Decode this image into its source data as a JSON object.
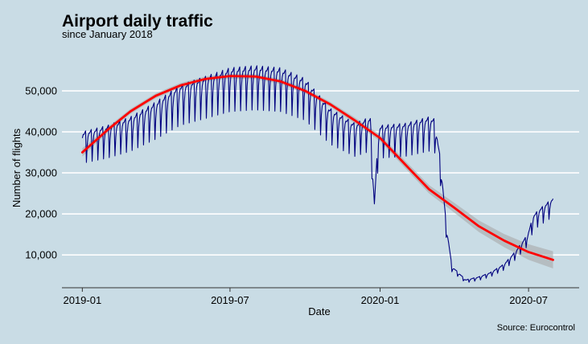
{
  "chart_data": {
    "type": "line",
    "title": "Airport daily traffic",
    "subtitle": "since January 2018",
    "xlabel": "Date",
    "ylabel": "Number of flights",
    "caption": "Source: Eurocontrol",
    "xlim": [
      "2018-12-07",
      "2020-09-01"
    ],
    "ylim": [
      2000,
      60000
    ],
    "x_ticks": [
      {
        "date": "2019-01-01",
        "label": "2019-01"
      },
      {
        "date": "2019-07-01",
        "label": "2019-07"
      },
      {
        "date": "2020-01-01",
        "label": "2020-01"
      },
      {
        "date": "2020-07-01",
        "label": "2020-07"
      }
    ],
    "y_ticks": [
      {
        "value": 10000,
        "label": "10,000"
      },
      {
        "value": 20000,
        "label": "20,000"
      },
      {
        "value": 30000,
        "label": "30,000"
      },
      {
        "value": 40000,
        "label": "40,000"
      },
      {
        "value": 50000,
        "label": "50,000"
      }
    ],
    "grid": "horizontal",
    "colors": {
      "background": "#c9dce5",
      "grid": "#ffffff",
      "daily": "#00007f",
      "trend": "#ff0000",
      "band": "#a9a9a9"
    },
    "daily_pattern": {
      "period_days": 7,
      "weekday_factors": [
        1.0,
        1.02,
        1.02,
        1.03,
        1.04,
        0.84,
        0.95
      ]
    },
    "daily_envelope": [
      {
        "date": "2019-01-01",
        "value": 38500
      },
      {
        "date": "2019-02-01",
        "value": 40000
      },
      {
        "date": "2019-03-01",
        "value": 42000
      },
      {
        "date": "2019-04-01",
        "value": 45500
      },
      {
        "date": "2019-05-01",
        "value": 49500
      },
      {
        "date": "2019-06-01",
        "value": 51500
      },
      {
        "date": "2019-07-01",
        "value": 53500
      },
      {
        "date": "2019-08-01",
        "value": 54000
      },
      {
        "date": "2019-09-01",
        "value": 53500
      },
      {
        "date": "2019-10-01",
        "value": 51000
      },
      {
        "date": "2019-11-01",
        "value": 44000
      },
      {
        "date": "2019-12-01",
        "value": 40500
      },
      {
        "date": "2019-12-20",
        "value": 42000
      },
      {
        "date": "2019-12-25",
        "value": 22000
      },
      {
        "date": "2019-12-30",
        "value": 39000
      },
      {
        "date": "2020-01-01",
        "value": 40000
      },
      {
        "date": "2020-02-01",
        "value": 40500
      },
      {
        "date": "2020-03-01",
        "value": 42000
      },
      {
        "date": "2020-03-08",
        "value": 41500
      },
      {
        "date": "2020-03-15",
        "value": 32000
      },
      {
        "date": "2020-03-22",
        "value": 17000
      },
      {
        "date": "2020-03-29",
        "value": 7000
      },
      {
        "date": "2020-04-15",
        "value": 3800
      },
      {
        "date": "2020-05-01",
        "value": 4500
      },
      {
        "date": "2020-05-15",
        "value": 5500
      },
      {
        "date": "2020-06-01",
        "value": 7500
      },
      {
        "date": "2020-06-15",
        "value": 10500
      },
      {
        "date": "2020-06-30",
        "value": 14500
      },
      {
        "date": "2020-07-07",
        "value": 19000
      },
      {
        "date": "2020-07-15",
        "value": 20500
      },
      {
        "date": "2020-07-31",
        "value": 23000
      }
    ],
    "trend": [
      {
        "date": "2019-01-01",
        "value": 35000,
        "lower": 34000,
        "upper": 36000
      },
      {
        "date": "2019-02-01",
        "value": 40500,
        "lower": 39800,
        "upper": 41200
      },
      {
        "date": "2019-03-01",
        "value": 45000,
        "lower": 44400,
        "upper": 45600
      },
      {
        "date": "2019-04-01",
        "value": 48800,
        "lower": 48200,
        "upper": 49400
      },
      {
        "date": "2019-05-01",
        "value": 51300,
        "lower": 50700,
        "upper": 51900
      },
      {
        "date": "2019-06-01",
        "value": 52900,
        "lower": 52300,
        "upper": 53500
      },
      {
        "date": "2019-07-01",
        "value": 53600,
        "lower": 53000,
        "upper": 54200
      },
      {
        "date": "2019-08-01",
        "value": 53500,
        "lower": 52900,
        "upper": 54100
      },
      {
        "date": "2019-09-01",
        "value": 52300,
        "lower": 51700,
        "upper": 52900
      },
      {
        "date": "2019-10-01",
        "value": 50000,
        "lower": 49400,
        "upper": 50600
      },
      {
        "date": "2019-11-01",
        "value": 46700,
        "lower": 46100,
        "upper": 47300
      },
      {
        "date": "2019-12-01",
        "value": 42800,
        "lower": 42100,
        "upper": 43500
      },
      {
        "date": "2020-01-01",
        "value": 38500,
        "lower": 37700,
        "upper": 39300
      },
      {
        "date": "2020-02-01",
        "value": 32000,
        "lower": 31100,
        "upper": 32900
      },
      {
        "date": "2020-03-01",
        "value": 26000,
        "lower": 25000,
        "upper": 27000
      },
      {
        "date": "2020-04-01",
        "value": 21500,
        "lower": 20300,
        "upper": 22700
      },
      {
        "date": "2020-05-01",
        "value": 17000,
        "lower": 15600,
        "upper": 18400
      },
      {
        "date": "2020-06-01",
        "value": 13500,
        "lower": 11900,
        "upper": 15100
      },
      {
        "date": "2020-07-01",
        "value": 10700,
        "lower": 8800,
        "upper": 12600
      },
      {
        "date": "2020-07-31",
        "value": 8800,
        "lower": 6700,
        "upper": 10900
      }
    ]
  }
}
